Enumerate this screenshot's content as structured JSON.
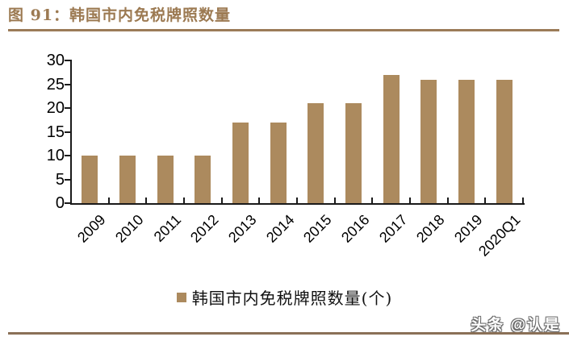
{
  "header": {
    "title": "图 91：韩国市内免税牌照数量"
  },
  "chart_data": {
    "type": "bar",
    "title": "图 91：韩国市内免税牌照数量",
    "categories": [
      "2009",
      "2010",
      "2011",
      "2012",
      "2013",
      "2014",
      "2015",
      "2016",
      "2017",
      "2018",
      "2019",
      "2020Q1"
    ],
    "values": [
      10,
      10,
      10,
      10,
      17,
      17,
      21,
      21,
      27,
      26,
      26,
      26
    ],
    "ylabel": "",
    "xlabel": "",
    "ylim": [
      0,
      30
    ],
    "ytick_step": 5,
    "yticks": [
      0,
      5,
      10,
      15,
      20,
      25,
      30
    ],
    "grid": false,
    "legend_position": "bottom",
    "legend": "韩国市内免税牌照数量(个)"
  },
  "legend": {
    "label": "韩国市内免税牌照数量(个)"
  },
  "footer": {
    "watermark": "头条 @认是"
  },
  "colors": {
    "bar": "#AC8A5E",
    "title": "#9C7A52",
    "title_rule": "#9B7B58",
    "bottom_rule": "#8A7057",
    "axis": "#1a1a1a",
    "label": "#000000"
  }
}
